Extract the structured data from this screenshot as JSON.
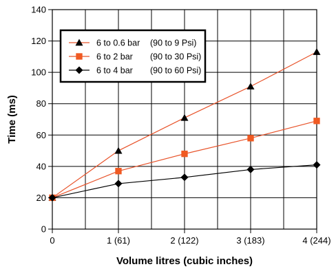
{
  "chart_data": {
    "type": "line",
    "xlabel": "Volume litres (cubic inches)",
    "ylabel": "Time (ms)",
    "x": [
      0,
      1,
      2,
      3,
      4
    ],
    "x_tick_labels": [
      "0",
      "1 (61)",
      "2 (122)",
      "3 (183)",
      "4 (244)"
    ],
    "xlim": [
      0,
      4
    ],
    "ylim": [
      0,
      140
    ],
    "y_ticks": [
      0,
      20,
      40,
      60,
      80,
      100,
      120,
      140
    ],
    "grid": true,
    "legend_position": "upper-left",
    "series": [
      {
        "name": "6 to 0.6 bar",
        "note": "(90 to 9 Psi)",
        "marker": "triangle",
        "line_color": "#e8532a",
        "marker_color": "#000000",
        "values": [
          20,
          50,
          71,
          91,
          113
        ]
      },
      {
        "name": "6 to 2 bar",
        "note": "(90 to 30 Psi)",
        "marker": "square",
        "line_color": "#e8532a",
        "marker_color": "#f05a22",
        "values": [
          20,
          37,
          48,
          58,
          69
        ]
      },
      {
        "name": "6 to 4 bar",
        "note": "(90 to 60 Psi)",
        "marker": "diamond",
        "line_color": "#000000",
        "marker_color": "#000000",
        "values": [
          20,
          29,
          33,
          38,
          41
        ]
      }
    ]
  }
}
